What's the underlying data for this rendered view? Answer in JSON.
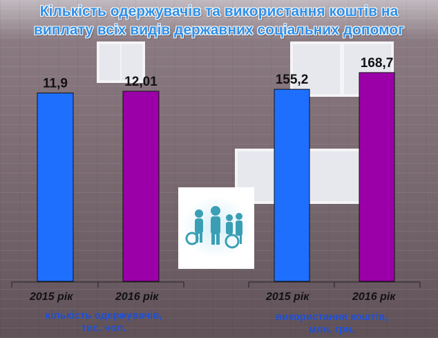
{
  "title": {
    "line1": "Кількість одержувачів та використання коштів на",
    "line2": "виплату всіх видів державних соціальних допомог"
  },
  "colors": {
    "bar_2015": "#1f6fff",
    "bar_2016": "#9b00a8",
    "title": "#2f8fe8",
    "caption": "#1f4fd6"
  },
  "chart_data": [
    {
      "type": "bar",
      "categories": [
        "2015 рік",
        "2016 рік"
      ],
      "values": [
        11.9,
        12.01
      ],
      "data_labels": [
        "11,9",
        "12,01"
      ],
      "xlabel": "кількість одержувачів, тис. чол."
    },
    {
      "type": "bar",
      "categories": [
        "2015 рік",
        "2016 рік"
      ],
      "values": [
        155.2,
        168.7
      ],
      "data_labels": [
        "155,2",
        "168,7"
      ],
      "xlabel": "використання коштів, млн. грн."
    }
  ],
  "captions": {
    "left_line1": "кількість одержувачів,",
    "left_line2": "тис. чол.",
    "right_line1": "використання коштів,",
    "right_line2": "млн. грн."
  },
  "icons": {
    "center": "family-people-icon"
  }
}
